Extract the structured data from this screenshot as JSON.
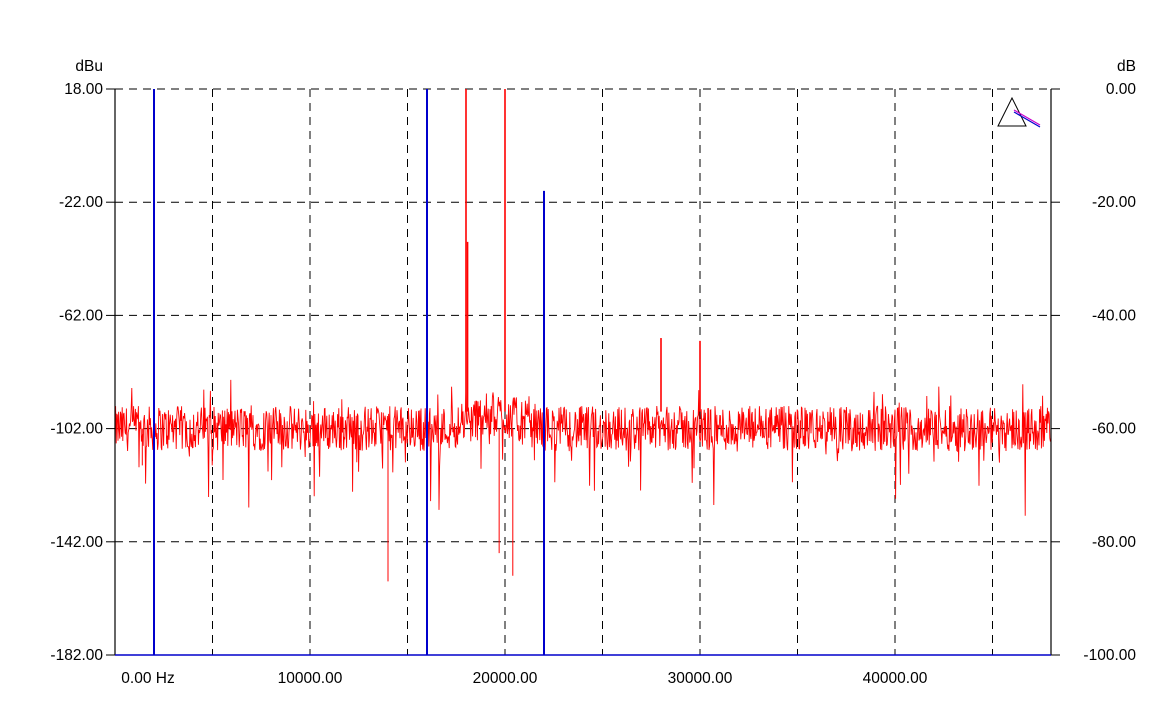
{
  "chart_data": {
    "type": "line",
    "left_axis": {
      "unit": "dBu",
      "ylim": [
        -182,
        18
      ],
      "ticks": [
        18,
        -22,
        -62,
        -102,
        -142,
        -182
      ],
      "tick_labels": [
        "18.00",
        "-22.00",
        "-62.00",
        "-102.00",
        "-142.00",
        "-182.00"
      ]
    },
    "right_axis": {
      "unit": "dB",
      "ylim": [
        -100,
        0
      ],
      "ticks": [
        0,
        -20,
        -40,
        -60,
        -80,
        -100
      ],
      "tick_labels": [
        "0.00",
        "-20.00",
        "-40.00",
        "-60.00",
        "-80.00",
        "-100.00"
      ]
    },
    "x_axis": {
      "xlim": [
        0,
        48000
      ],
      "labeled_ticks": [
        0,
        10000,
        20000,
        30000,
        40000
      ],
      "tick_labels": [
        "0.00 Hz",
        "10000.00",
        "20000.00",
        "30000.00",
        "40000.00"
      ],
      "gridlines": [
        5000,
        10000,
        15000,
        20000,
        25000,
        30000,
        35000,
        40000,
        45000
      ]
    },
    "grid": true,
    "grid_style": "dashed",
    "series": [
      {
        "color": "#ff0000",
        "axis": "left",
        "noise_floor_dbu": -102,
        "peaks": [
          {
            "x": 18000,
            "y": 18
          },
          {
            "x": 18080,
            "y": -36
          },
          {
            "x": 20000,
            "y": 18
          },
          {
            "x": 28000,
            "y": -70
          },
          {
            "x": 30000,
            "y": -71
          }
        ]
      },
      {
        "color": "#0000cc",
        "axis": "right",
        "type": "markers",
        "markers": [
          {
            "x": 2000,
            "y": 0
          },
          {
            "x": 16000,
            "y": 0
          },
          {
            "x": 22000,
            "y": -18
          }
        ]
      }
    ]
  }
}
